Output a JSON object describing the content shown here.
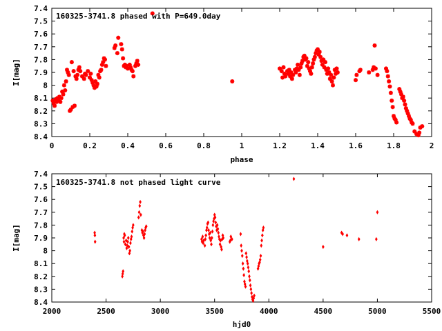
{
  "chart_data": [
    {
      "type": "scatter",
      "title": "160325-3741.8 phased with P=649.0day",
      "xlabel": "phase",
      "ylabel": "I[mag]",
      "xlim": [
        0,
        2
      ],
      "ylim": [
        7.4,
        8.4
      ],
      "y_inverted": true,
      "grid": false,
      "marker_color": "#ff0000",
      "x_ticks": [
        0,
        0.2,
        0.4,
        0.6,
        0.8,
        1,
        1.2,
        1.4,
        1.6,
        1.8,
        2
      ],
      "x_tick_labels": [
        "0",
        "0.2",
        "0.4",
        "0.6",
        "0.8",
        "1",
        "1.2",
        "1.4",
        "1.6",
        "1.8",
        "2"
      ],
      "y_ticks": [
        7.4,
        7.5,
        7.6,
        7.7,
        7.8,
        7.9,
        8,
        8.1,
        8.2,
        8.3,
        8.4
      ],
      "y_tick_labels": [
        "7.4",
        "7.5",
        "7.6",
        "7.7",
        "7.8",
        "7.9",
        "8",
        "8.1",
        "8.2",
        "8.3",
        "8.4"
      ],
      "points": [
        [
          0.005,
          8.12
        ],
        [
          0.01,
          8.14
        ],
        [
          0.015,
          8.16
        ],
        [
          0.02,
          8.11
        ],
        [
          0.025,
          8.13
        ],
        [
          0.03,
          8.1
        ],
        [
          0.035,
          8.12
        ],
        [
          0.04,
          8.09
        ],
        [
          0.045,
          8.13
        ],
        [
          0.05,
          8.1
        ],
        [
          0.055,
          8.05
        ],
        [
          0.06,
          8.07
        ],
        [
          0.065,
          8.0
        ],
        [
          0.07,
          8.04
        ],
        [
          0.075,
          7.97
        ],
        [
          0.08,
          7.88
        ],
        [
          0.085,
          7.9
        ],
        [
          0.09,
          7.92
        ],
        [
          0.095,
          8.2
        ],
        [
          0.1,
          8.19
        ],
        [
          0.105,
          7.82
        ],
        [
          0.11,
          8.17
        ],
        [
          0.115,
          7.89
        ],
        [
          0.12,
          8.16
        ],
        [
          0.125,
          7.93
        ],
        [
          0.13,
          7.95
        ],
        [
          0.135,
          7.92
        ],
        [
          0.14,
          7.88
        ],
        [
          0.145,
          7.86
        ],
        [
          0.15,
          7.89
        ],
        [
          0.16,
          7.93
        ],
        [
          0.17,
          7.95
        ],
        [
          0.175,
          7.91
        ],
        [
          0.18,
          7.92
        ],
        [
          0.19,
          7.89
        ],
        [
          0.2,
          7.94
        ],
        [
          0.205,
          7.91
        ],
        [
          0.21,
          7.96
        ],
        [
          0.215,
          7.98
        ],
        [
          0.22,
          8.0
        ],
        [
          0.225,
          8.02
        ],
        [
          0.23,
          7.97
        ],
        [
          0.235,
          8.01
        ],
        [
          0.24,
          7.99
        ],
        [
          0.245,
          7.92
        ],
        [
          0.25,
          7.94
        ],
        [
          0.255,
          7.89
        ],
        [
          0.26,
          7.88
        ],
        [
          0.265,
          7.84
        ],
        [
          0.27,
          7.82
        ],
        [
          0.275,
          7.79
        ],
        [
          0.28,
          7.8
        ],
        [
          0.285,
          7.85
        ],
        [
          0.33,
          7.71
        ],
        [
          0.335,
          7.69
        ],
        [
          0.345,
          7.75
        ],
        [
          0.35,
          7.63
        ],
        [
          0.365,
          7.68
        ],
        [
          0.37,
          7.72
        ],
        [
          0.375,
          7.79
        ],
        [
          0.38,
          7.85
        ],
        [
          0.385,
          7.84
        ],
        [
          0.39,
          7.86
        ],
        [
          0.395,
          7.85
        ],
        [
          0.4,
          7.87
        ],
        [
          0.41,
          7.84
        ],
        [
          0.415,
          7.86
        ],
        [
          0.42,
          7.88
        ],
        [
          0.425,
          7.89
        ],
        [
          0.43,
          7.93
        ],
        [
          0.44,
          7.85
        ],
        [
          0.445,
          7.83
        ],
        [
          0.45,
          7.81
        ],
        [
          0.455,
          7.84
        ],
        [
          0.53,
          7.44
        ],
        [
          0.95,
          7.97
        ],
        [
          1.2,
          7.87
        ],
        [
          1.21,
          7.89
        ],
        [
          1.215,
          7.94
        ],
        [
          1.22,
          7.86
        ],
        [
          1.225,
          7.91
        ],
        [
          1.23,
          7.93
        ],
        [
          1.24,
          7.89
        ],
        [
          1.245,
          7.91
        ],
        [
          1.25,
          7.88
        ],
        [
          1.255,
          7.93
        ],
        [
          1.26,
          7.9
        ],
        [
          1.265,
          7.95
        ],
        [
          1.27,
          7.92
        ],
        [
          1.28,
          7.88
        ],
        [
          1.285,
          7.9
        ],
        [
          1.29,
          7.87
        ],
        [
          1.295,
          7.84
        ],
        [
          1.3,
          7.88
        ],
        [
          1.305,
          7.92
        ],
        [
          1.31,
          7.86
        ],
        [
          1.315,
          7.83
        ],
        [
          1.32,
          7.81
        ],
        [
          1.325,
          7.78
        ],
        [
          1.33,
          7.77
        ],
        [
          1.335,
          7.8
        ],
        [
          1.34,
          7.79
        ],
        [
          1.345,
          7.85
        ],
        [
          1.35,
          7.82
        ],
        [
          1.355,
          7.87
        ],
        [
          1.36,
          7.89
        ],
        [
          1.365,
          7.91
        ],
        [
          1.37,
          7.86
        ],
        [
          1.375,
          7.83
        ],
        [
          1.38,
          7.8
        ],
        [
          1.385,
          7.78
        ],
        [
          1.39,
          7.75
        ],
        [
          1.395,
          7.73
        ],
        [
          1.4,
          7.72
        ],
        [
          1.405,
          7.76
        ],
        [
          1.41,
          7.74
        ],
        [
          1.415,
          7.78
        ],
        [
          1.42,
          7.81
        ],
        [
          1.425,
          7.84
        ],
        [
          1.43,
          7.8
        ],
        [
          1.435,
          7.86
        ],
        [
          1.44,
          7.82
        ],
        [
          1.445,
          7.88
        ],
        [
          1.45,
          7.91
        ],
        [
          1.455,
          7.87
        ],
        [
          1.46,
          7.9
        ],
        [
          1.465,
          7.95
        ],
        [
          1.47,
          7.92
        ],
        [
          1.475,
          7.97
        ],
        [
          1.48,
          8.0
        ],
        [
          1.485,
          7.94
        ],
        [
          1.49,
          7.88
        ],
        [
          1.495,
          7.91
        ],
        [
          1.5,
          7.87
        ],
        [
          1.505,
          7.9
        ],
        [
          1.6,
          7.96
        ],
        [
          1.605,
          7.92
        ],
        [
          1.62,
          7.89
        ],
        [
          1.625,
          7.88
        ],
        [
          1.67,
          7.9
        ],
        [
          1.69,
          7.88
        ],
        [
          1.695,
          7.86
        ],
        [
          1.7,
          7.69
        ],
        [
          1.705,
          7.87
        ],
        [
          1.715,
          7.92
        ],
        [
          1.76,
          7.87
        ],
        [
          1.765,
          7.89
        ],
        [
          1.77,
          7.93
        ],
        [
          1.775,
          7.97
        ],
        [
          1.78,
          8.01
        ],
        [
          1.785,
          8.06
        ],
        [
          1.79,
          8.12
        ],
        [
          1.795,
          8.17
        ],
        [
          1.8,
          8.24
        ],
        [
          1.805,
          8.26
        ],
        [
          1.81,
          8.27
        ],
        [
          1.815,
          8.29
        ],
        [
          1.83,
          8.03
        ],
        [
          1.835,
          8.05
        ],
        [
          1.84,
          8.07
        ],
        [
          1.845,
          8.1
        ],
        [
          1.85,
          8.09
        ],
        [
          1.855,
          8.12
        ],
        [
          1.86,
          8.15
        ],
        [
          1.865,
          8.18
        ],
        [
          1.87,
          8.2
        ],
        [
          1.875,
          8.22
        ],
        [
          1.88,
          8.24
        ],
        [
          1.885,
          8.26
        ],
        [
          1.89,
          8.27
        ],
        [
          1.895,
          8.29
        ],
        [
          1.9,
          8.3
        ],
        [
          1.91,
          8.36
        ],
        [
          1.92,
          8.38
        ],
        [
          1.93,
          8.39
        ],
        [
          1.935,
          8.37
        ],
        [
          1.94,
          8.33
        ],
        [
          1.95,
          8.32
        ]
      ]
    },
    {
      "type": "scatter",
      "title": "160325-3741.8 not phased light curve",
      "xlabel": "hjd0",
      "ylabel": "I[mag]",
      "xlim": [
        2000,
        5500
      ],
      "ylim": [
        7.4,
        8.4
      ],
      "y_inverted": true,
      "grid": false,
      "marker_color": "#ff0000",
      "x_ticks": [
        2000,
        2500,
        3000,
        3500,
        4000,
        4500,
        5000,
        5500
      ],
      "x_tick_labels": [
        "2000",
        "2500",
        "3000",
        "3500",
        "4000",
        "4500",
        "5000",
        "5500"
      ],
      "y_ticks": [
        7.4,
        7.5,
        7.6,
        7.7,
        7.8,
        7.9,
        8,
        8.1,
        8.2,
        8.3,
        8.4
      ],
      "y_tick_labels": [
        "7.4",
        "7.5",
        "7.6",
        "7.7",
        "7.8",
        "7.9",
        "8",
        "8.1",
        "8.2",
        "8.3",
        "8.4"
      ],
      "points": [
        [
          2395,
          7.86
        ],
        [
          2397,
          7.88
        ],
        [
          2399,
          7.93
        ],
        [
          2650,
          8.2
        ],
        [
          2653,
          8.18
        ],
        [
          2657,
          8.16
        ],
        [
          2662,
          7.9
        ],
        [
          2665,
          7.93
        ],
        [
          2668,
          7.87
        ],
        [
          2672,
          7.88
        ],
        [
          2678,
          7.95
        ],
        [
          2685,
          7.92
        ],
        [
          2690,
          7.98
        ],
        [
          2695,
          7.96
        ],
        [
          2700,
          7.93
        ],
        [
          2705,
          7.9
        ],
        [
          2710,
          7.97
        ],
        [
          2715,
          8.02
        ],
        [
          2720,
          8.0
        ],
        [
          2725,
          7.94
        ],
        [
          2730,
          7.91
        ],
        [
          2735,
          7.89
        ],
        [
          2740,
          7.85
        ],
        [
          2745,
          7.82
        ],
        [
          2750,
          7.8
        ],
        [
          2800,
          7.74
        ],
        [
          2805,
          7.7
        ],
        [
          2810,
          7.65
        ],
        [
          2815,
          7.62
        ],
        [
          2820,
          7.72
        ],
        [
          2830,
          7.84
        ],
        [
          2835,
          7.86
        ],
        [
          2840,
          7.85
        ],
        [
          2845,
          7.88
        ],
        [
          2850,
          7.9
        ],
        [
          2855,
          7.87
        ],
        [
          2860,
          7.84
        ],
        [
          2865,
          7.82
        ],
        [
          2870,
          7.81
        ],
        [
          3380,
          7.91
        ],
        [
          3385,
          7.93
        ],
        [
          3390,
          7.89
        ],
        [
          3395,
          7.94
        ],
        [
          3400,
          7.92
        ],
        [
          3410,
          7.96
        ],
        [
          3415,
          7.91
        ],
        [
          3420,
          7.88
        ],
        [
          3425,
          7.84
        ],
        [
          3430,
          7.82
        ],
        [
          3435,
          7.79
        ],
        [
          3440,
          7.78
        ],
        [
          3445,
          7.84
        ],
        [
          3450,
          7.87
        ],
        [
          3455,
          7.9
        ],
        [
          3460,
          7.86
        ],
        [
          3465,
          7.92
        ],
        [
          3470,
          7.95
        ],
        [
          3475,
          7.9
        ],
        [
          3480,
          7.85
        ],
        [
          3485,
          7.8
        ],
        [
          3490,
          7.77
        ],
        [
          3495,
          7.75
        ],
        [
          3500,
          7.72
        ],
        [
          3505,
          7.74
        ],
        [
          3510,
          7.78
        ],
        [
          3515,
          7.81
        ],
        [
          3520,
          7.84
        ],
        [
          3525,
          7.8
        ],
        [
          3530,
          7.83
        ],
        [
          3535,
          7.86
        ],
        [
          3540,
          7.89
        ],
        [
          3545,
          7.91
        ],
        [
          3550,
          7.95
        ],
        [
          3555,
          7.92
        ],
        [
          3560,
          7.97
        ],
        [
          3565,
          7.99
        ],
        [
          3570,
          7.91
        ],
        [
          3575,
          7.88
        ],
        [
          3580,
          7.9
        ],
        [
          3640,
          7.93
        ],
        [
          3645,
          7.92
        ],
        [
          3650,
          7.89
        ],
        [
          3660,
          7.91
        ],
        [
          3740,
          7.87
        ],
        [
          3745,
          7.96
        ],
        [
          3750,
          8.0
        ],
        [
          3755,
          8.04
        ],
        [
          3760,
          8.1
        ],
        [
          3765,
          8.14
        ],
        [
          3770,
          8.19
        ],
        [
          3775,
          8.24
        ],
        [
          3780,
          8.26
        ],
        [
          3785,
          8.28
        ],
        [
          3790,
          8.02
        ],
        [
          3795,
          8.05
        ],
        [
          3800,
          8.08
        ],
        [
          3805,
          8.1
        ],
        [
          3810,
          8.13
        ],
        [
          3815,
          8.16
        ],
        [
          3820,
          8.2
        ],
        [
          3825,
          8.23
        ],
        [
          3830,
          8.27
        ],
        [
          3835,
          8.3
        ],
        [
          3840,
          8.33
        ],
        [
          3845,
          8.36
        ],
        [
          3850,
          8.38
        ],
        [
          3855,
          8.39
        ],
        [
          3860,
          8.37
        ],
        [
          3865,
          8.35
        ],
        [
          3900,
          8.14
        ],
        [
          3905,
          8.12
        ],
        [
          3910,
          8.1
        ],
        [
          3915,
          8.09
        ],
        [
          3920,
          8.07
        ],
        [
          3925,
          8.04
        ],
        [
          3930,
          7.96
        ],
        [
          3935,
          7.92
        ],
        [
          3940,
          7.88
        ],
        [
          3945,
          7.84
        ],
        [
          3950,
          7.82
        ],
        [
          4230,
          7.44
        ],
        [
          4500,
          7.97
        ],
        [
          4670,
          7.86
        ],
        [
          4680,
          7.87
        ],
        [
          4720,
          7.88
        ],
        [
          4830,
          7.91
        ],
        [
          4990,
          7.91
        ],
        [
          5000,
          7.7
        ]
      ]
    }
  ]
}
